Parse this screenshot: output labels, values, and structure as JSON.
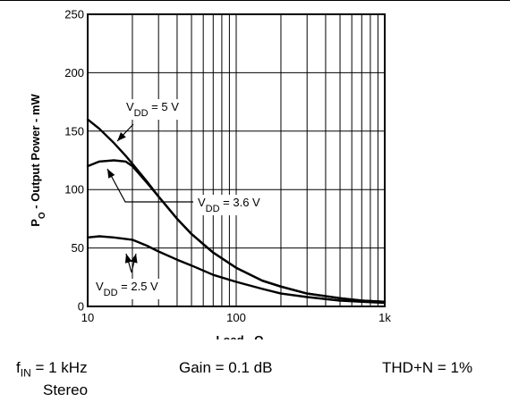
{
  "chart_data": {
    "type": "line",
    "xscale": "log",
    "xlim": [
      10,
      1000
    ],
    "ylim": [
      0,
      250
    ],
    "xticks": [
      10,
      100,
      1000
    ],
    "xtick_labels": [
      "10",
      "100",
      "1k"
    ],
    "yticks": [
      0,
      50,
      100,
      150,
      200,
      250
    ],
    "ytick_labels": [
      "0",
      "50",
      "100",
      "150",
      "200",
      "250"
    ],
    "grid": true,
    "xlabel": "Load - Ω",
    "ylabel": "PO - Output Power - mW",
    "series": [
      {
        "name": "VDD = 5 V",
        "label_main": "V",
        "label_sub": "DD",
        "label_rest": " = 5 V",
        "x": [
          10,
          12,
          15,
          18,
          20,
          25,
          30,
          40,
          50,
          70,
          100,
          150,
          200,
          300,
          500,
          700,
          1000
        ],
        "y": [
          160,
          152,
          140,
          129,
          122,
          107,
          94,
          75,
          62,
          46,
          33,
          22,
          17,
          11,
          7,
          5,
          4
        ]
      },
      {
        "name": "VDD = 3.6 V",
        "label_main": "V",
        "label_sub": "DD",
        "label_rest": " = 3.6 V",
        "x": [
          10,
          12,
          15,
          18,
          20,
          25,
          30,
          40,
          50,
          70,
          100,
          150,
          200,
          300,
          500,
          700,
          1000
        ],
        "y": [
          120,
          124,
          125,
          124,
          120,
          106,
          94,
          75,
          62,
          46,
          33,
          22,
          17,
          11,
          7,
          5,
          4
        ]
      },
      {
        "name": "VDD = 2.5 V",
        "label_main": "V",
        "label_sub": "DD",
        "label_rest": " = 2.5 V",
        "x": [
          10,
          12,
          15,
          20,
          25,
          30,
          40,
          50,
          70,
          100,
          150,
          200,
          300,
          500,
          700,
          1000
        ],
        "y": [
          59,
          60,
          59,
          57,
          52,
          47,
          40,
          35,
          27,
          21,
          15,
          11,
          8,
          5,
          4,
          3
        ]
      }
    ]
  },
  "conditions": {
    "fin_main": "f",
    "fin_sub": "IN",
    "fin_rest": " = 1 kHz",
    "gain": "Gain = 0.1 dB",
    "thd": "THD+N = 1%",
    "mode": "Stereo"
  }
}
